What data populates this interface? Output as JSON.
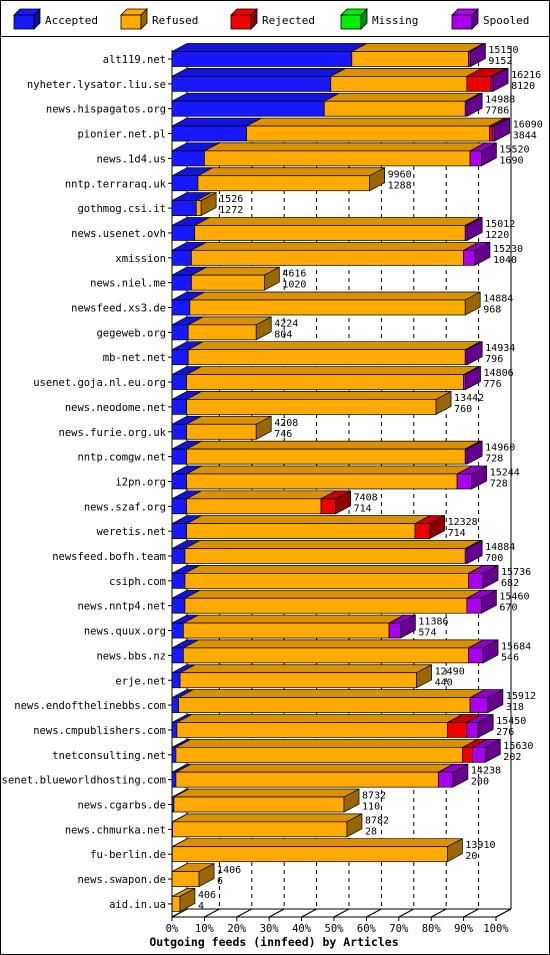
{
  "chart_data": {
    "type": "bar",
    "orientation": "horizontal",
    "stacked": true,
    "xlabel": "Outgoing feeds (innfeed) by Articles",
    "xlim": [
      0,
      100
    ],
    "x_unit": "%",
    "grid": true,
    "legend_position": "top",
    "x_ticks": [
      "0%",
      "10%",
      "20%",
      "30%",
      "40%",
      "50%",
      "60%",
      "70%",
      "80%",
      "90%",
      "100%"
    ],
    "series": [
      {
        "name": "Accepted",
        "color": "#1818ff"
      },
      {
        "name": "Refused",
        "color": "#ffaa00"
      },
      {
        "name": "Rejected",
        "color": "#ee0000"
      },
      {
        "name": "Missing",
        "color": "#00ee00"
      },
      {
        "name": "Spooled",
        "color": "#aa00ee"
      }
    ],
    "rows": [
      {
        "name": "alt119.net",
        "total": "15150",
        "accepted": "9152",
        "acc_pct": 55.5,
        "ref_pct": 36.0,
        "rej_pct": 0,
        "spo_pct": 0.6
      },
      {
        "name": "nyheter.lysator.liu.se",
        "total": "16216",
        "accepted": "8120",
        "acc_pct": 49.0,
        "ref_pct": 42.0,
        "rej_pct": 7.5,
        "spo_pct": 0.6
      },
      {
        "name": "news.hispagatos.org",
        "total": "14988",
        "accepted": "7786",
        "acc_pct": 47.0,
        "ref_pct": 43.5,
        "rej_pct": 0,
        "spo_pct": 0.6
      },
      {
        "name": "pionier.net.pl",
        "total": "16090",
        "accepted": "3844",
        "acc_pct": 23.0,
        "ref_pct": 75.0,
        "rej_pct": 1.0,
        "spo_pct": 0.6
      },
      {
        "name": "news.1d4.us",
        "total": "15520",
        "accepted": "1690",
        "acc_pct": 10.0,
        "ref_pct": 82.0,
        "rej_pct": 0,
        "spo_pct": 3.5
      },
      {
        "name": "nntp.terraraq.uk",
        "total": "9960",
        "accepted": "1288",
        "acc_pct": 8.0,
        "ref_pct": 53.0,
        "rej_pct": 0,
        "spo_pct": 0
      },
      {
        "name": "gothmog.csi.it",
        "total": "1526",
        "accepted": "1272",
        "acc_pct": 7.5,
        "ref_pct": 1.5,
        "rej_pct": 0,
        "spo_pct": 0
      },
      {
        "name": "news.usenet.ovh",
        "total": "15012",
        "accepted": "1220",
        "acc_pct": 7.0,
        "ref_pct": 83.5,
        "rej_pct": 0,
        "spo_pct": 0.6
      },
      {
        "name": "xmission",
        "total": "15230",
        "accepted": "1040",
        "acc_pct": 6.0,
        "ref_pct": 84.0,
        "rej_pct": 0,
        "spo_pct": 3.5
      },
      {
        "name": "news.niel.me",
        "total": "4616",
        "accepted": "1020",
        "acc_pct": 6.0,
        "ref_pct": 22.5,
        "rej_pct": 0,
        "spo_pct": 0
      },
      {
        "name": "newsfeed.xs3.de",
        "total": "14884",
        "accepted": "968",
        "acc_pct": 5.5,
        "ref_pct": 85.0,
        "rej_pct": 0,
        "spo_pct": 0
      },
      {
        "name": "gegeweb.org",
        "total": "4224",
        "accepted": "804",
        "acc_pct": 5.0,
        "ref_pct": 21.0,
        "rej_pct": 0,
        "spo_pct": 0
      },
      {
        "name": "mb-net.net",
        "total": "14934",
        "accepted": "796",
        "acc_pct": 5.0,
        "ref_pct": 85.5,
        "rej_pct": 0,
        "spo_pct": 0.6
      },
      {
        "name": "usenet.goja.nl.eu.org",
        "total": "14806",
        "accepted": "776",
        "acc_pct": 4.5,
        "ref_pct": 85.5,
        "rej_pct": 0,
        "spo_pct": 0.6
      },
      {
        "name": "news.neodome.net",
        "total": "13442",
        "accepted": "760",
        "acc_pct": 4.5,
        "ref_pct": 77.0,
        "rej_pct": 0,
        "spo_pct": 0
      },
      {
        "name": "news.furie.org.uk",
        "total": "4208",
        "accepted": "746",
        "acc_pct": 4.5,
        "ref_pct": 21.5,
        "rej_pct": 0,
        "spo_pct": 0
      },
      {
        "name": "nntp.comgw.net",
        "total": "14960",
        "accepted": "728",
        "acc_pct": 4.5,
        "ref_pct": 86.0,
        "rej_pct": 0,
        "spo_pct": 0.6
      },
      {
        "name": "i2pn.org",
        "total": "15244",
        "accepted": "728",
        "acc_pct": 4.5,
        "ref_pct": 83.5,
        "rej_pct": 0,
        "spo_pct": 4.5
      },
      {
        "name": "news.szaf.org",
        "total": "7408",
        "accepted": "714",
        "acc_pct": 4.5,
        "ref_pct": 41.5,
        "rej_pct": 4.5,
        "spo_pct": 0
      },
      {
        "name": "weretis.net",
        "total": "12328",
        "accepted": "714",
        "acc_pct": 4.5,
        "ref_pct": 70.5,
        "rej_pct": 4.5,
        "spo_pct": 0
      },
      {
        "name": "newsfeed.bofh.team",
        "total": "14884",
        "accepted": "700",
        "acc_pct": 4.0,
        "ref_pct": 86.5,
        "rej_pct": 0,
        "spo_pct": 0.6
      },
      {
        "name": "csiph.com",
        "total": "15736",
        "accepted": "682",
        "acc_pct": 4.0,
        "ref_pct": 87.5,
        "rej_pct": 0,
        "spo_pct": 4.5
      },
      {
        "name": "news.nntp4.net",
        "total": "15460",
        "accepted": "670",
        "acc_pct": 4.0,
        "ref_pct": 87.0,
        "rej_pct": 0,
        "spo_pct": 4.5
      },
      {
        "name": "news.quux.org",
        "total": "11386",
        "accepted": "574",
        "acc_pct": 3.5,
        "ref_pct": 63.5,
        "rej_pct": 0,
        "spo_pct": 3.5
      },
      {
        "name": "news.bbs.nz",
        "total": "15684",
        "accepted": "546",
        "acc_pct": 3.5,
        "ref_pct": 88.0,
        "rej_pct": 0,
        "spo_pct": 4.5
      },
      {
        "name": "erje.net",
        "total": "12490",
        "accepted": "440",
        "acc_pct": 2.5,
        "ref_pct": 73.0,
        "rej_pct": 0,
        "spo_pct": 0
      },
      {
        "name": "news.endofthelinebbs.com",
        "total": "15912",
        "accepted": "318",
        "acc_pct": 2.0,
        "ref_pct": 90.0,
        "rej_pct": 0,
        "spo_pct": 5.5
      },
      {
        "name": "news.cmpublishers.com",
        "total": "15450",
        "accepted": "276",
        "acc_pct": 1.5,
        "ref_pct": 83.5,
        "rej_pct": 6.0,
        "spo_pct": 3.5
      },
      {
        "name": "tnetconsulting.net",
        "total": "15630",
        "accepted": "202",
        "acc_pct": 1.2,
        "ref_pct": 88.5,
        "rej_pct": 3.0,
        "spo_pct": 4.0
      },
      {
        "name": "usenet.blueworldhosting.com",
        "total": "14238",
        "accepted": "200",
        "acc_pct": 1.2,
        "ref_pct": 81.0,
        "rej_pct": 0,
        "spo_pct": 4.5
      },
      {
        "name": "news.cgarbs.de",
        "total": "8732",
        "accepted": "110",
        "acc_pct": 0.6,
        "ref_pct": 52.5,
        "rej_pct": 0,
        "spo_pct": 0
      },
      {
        "name": "news.chmurka.net",
        "total": "8782",
        "accepted": "28",
        "acc_pct": 0.2,
        "ref_pct": 53.8,
        "rej_pct": 0,
        "spo_pct": 0
      },
      {
        "name": "fu-berlin.de",
        "total": "13910",
        "accepted": "20",
        "acc_pct": 0.1,
        "ref_pct": 84.9,
        "rej_pct": 0,
        "spo_pct": 0
      },
      {
        "name": "news.swapon.de",
        "total": "1406",
        "accepted": "6",
        "acc_pct": 0.05,
        "ref_pct": 8.3,
        "rej_pct": 0,
        "spo_pct": 0
      },
      {
        "name": "aid.in.ua",
        "total": "406",
        "accepted": "4",
        "acc_pct": 0.05,
        "ref_pct": 2.4,
        "rej_pct": 0,
        "spo_pct": 0
      }
    ]
  }
}
